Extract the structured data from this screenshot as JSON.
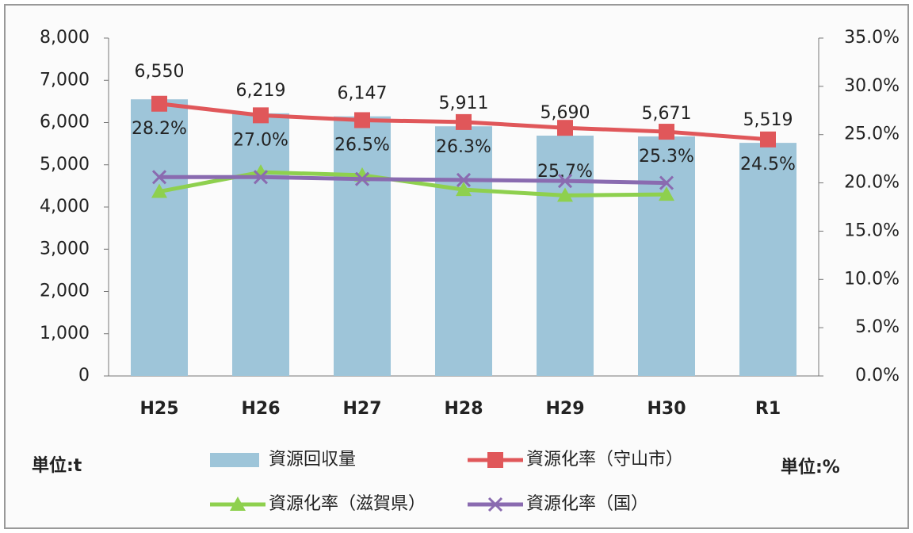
{
  "chart_data": {
    "type": "combo",
    "categories": [
      "H25",
      "H26",
      "H27",
      "H28",
      "H29",
      "H30",
      "R1"
    ],
    "series": [
      {
        "name": "資源回収量",
        "type": "bar",
        "color": "#9ec5d9",
        "values": [
          6550,
          6219,
          6147,
          5911,
          5690,
          5671,
          5519
        ],
        "value_labels": [
          "6,550",
          "6,219",
          "6,147",
          "5,911",
          "5,690",
          "5,671",
          "5,519"
        ]
      },
      {
        "name": "資源化率（守山市）",
        "type": "line",
        "axis": "y2",
        "marker": "square",
        "color": "#e0575a",
        "values": [
          28.2,
          27.0,
          26.5,
          26.3,
          25.7,
          25.3,
          24.5
        ],
        "value_labels": [
          "28.2%",
          "27.0%",
          "26.5%",
          "26.3%",
          "25.7%",
          "25.3%",
          "24.5%"
        ]
      },
      {
        "name": "資源化率（滋賀県）",
        "type": "line",
        "axis": "y2",
        "marker": "triangle",
        "color": "#8ed04e",
        "values": [
          19.1,
          21.1,
          20.8,
          19.3,
          18.7,
          18.8,
          null
        ]
      },
      {
        "name": "資源化率（国）",
        "type": "line",
        "axis": "y2",
        "marker": "x",
        "color": "#8a6bb0",
        "values": [
          20.6,
          20.6,
          20.4,
          20.3,
          20.2,
          20.0,
          null
        ]
      }
    ],
    "ylim": [
      0,
      8000
    ],
    "yticks": [
      0,
      {
        "value": 1000,
        "label": "1,000"
      },
      {
        "value": 2000,
        "label": "2,000"
      },
      {
        "value": 3000,
        "label": "3,000"
      },
      {
        "value": 4000,
        "label": "4,000"
      },
      {
        "value": 5000,
        "label": "5,000"
      },
      {
        "value": 6000,
        "label": "6,000"
      },
      {
        "value": 7000,
        "label": "7,000"
      },
      {
        "value": 8000,
        "label": "8,000"
      }
    ],
    "y2lim": [
      0,
      35
    ],
    "y2ticks": [
      {
        "value": 0,
        "label": "0.0%"
      },
      {
        "value": 5,
        "label": "5.0%"
      },
      {
        "value": 10,
        "label": "10.0%"
      },
      {
        "value": 15,
        "label": "15.0%"
      },
      {
        "value": 20,
        "label": "20.0%"
      },
      {
        "value": 25,
        "label": "25.0%"
      },
      {
        "value": 30,
        "label": "30.0%"
      },
      {
        "value": 35,
        "label": "35.0%"
      }
    ],
    "unit_left": "単位:t",
    "unit_right": "単位:%"
  }
}
